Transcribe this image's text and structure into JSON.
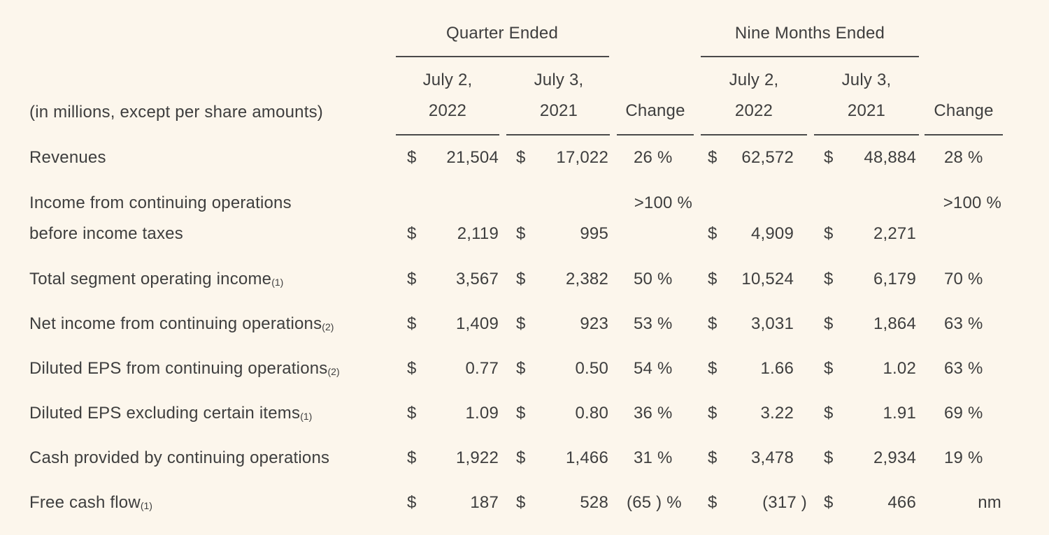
{
  "header": {
    "group_quarter": "Quarter Ended",
    "group_nine_months": "Nine Months Ended",
    "units_label": "(in millions, except per share amounts)",
    "q_col1_line1": "July 2,",
    "q_col1_line2": "2022",
    "q_col2_line1": "July 3,",
    "q_col2_line2": "2021",
    "q_change": "Change",
    "n_col1_line1": "July 2,",
    "n_col1_line2": "2022",
    "n_col2_line1": "July 3,",
    "n_col2_line2": "2021",
    "n_change": "Change"
  },
  "rows": [
    {
      "label": "Revenues",
      "footnote": "",
      "q_cur_dollar": "$",
      "q_cur": "21,504",
      "q_prior_dollar": "$",
      "q_prior": "17,022",
      "q_change": "26 %",
      "n_cur_dollar": "$",
      "n_cur": "62,572",
      "n_prior_dollar": "$",
      "n_prior": "48,884",
      "n_change": "28 %"
    },
    {
      "label": "Income from continuing operations",
      "label2": "before income taxes",
      "footnote": "",
      "q_cur_dollar": "$",
      "q_cur": "2,119",
      "q_prior_dollar": "$",
      "q_prior": "995",
      "q_change": ">100 %",
      "n_cur_dollar": "$",
      "n_cur": "4,909",
      "n_prior_dollar": "$",
      "n_prior": "2,271",
      "n_change": ">100 %"
    },
    {
      "label": "Total segment operating income",
      "footnote": "(1)",
      "q_cur_dollar": "$",
      "q_cur": "3,567",
      "q_prior_dollar": "$",
      "q_prior": "2,382",
      "q_change": "50 %",
      "n_cur_dollar": "$",
      "n_cur": "10,524",
      "n_prior_dollar": "$",
      "n_prior": "6,179",
      "n_change": "70 %"
    },
    {
      "label": "Net income from continuing operations",
      "footnote": "(2)",
      "q_cur_dollar": "$",
      "q_cur": "1,409",
      "q_prior_dollar": "$",
      "q_prior": "923",
      "q_change": "53 %",
      "n_cur_dollar": "$",
      "n_cur": "3,031",
      "n_prior_dollar": "$",
      "n_prior": "1,864",
      "n_change": "63 %"
    },
    {
      "label": "Diluted EPS from continuing operations",
      "footnote": "(2)",
      "q_cur_dollar": "$",
      "q_cur": "0.77",
      "q_prior_dollar": "$",
      "q_prior": "0.50",
      "q_change": "54 %",
      "n_cur_dollar": "$",
      "n_cur": "1.66",
      "n_prior_dollar": "$",
      "n_prior": "1.02",
      "n_change": "63 %"
    },
    {
      "label": "Diluted EPS excluding certain items",
      "footnote": "(1)",
      "q_cur_dollar": "$",
      "q_cur": "1.09",
      "q_prior_dollar": "$",
      "q_prior": "0.80",
      "q_change": "36 %",
      "n_cur_dollar": "$",
      "n_cur": "3.22",
      "n_prior_dollar": "$",
      "n_prior": "1.91",
      "n_change": "69 %"
    },
    {
      "label": "Cash provided by continuing operations",
      "footnote": "",
      "q_cur_dollar": "$",
      "q_cur": "1,922",
      "q_prior_dollar": "$",
      "q_prior": "1,466",
      "q_change": "31 %",
      "n_cur_dollar": "$",
      "n_cur": "3,478",
      "n_prior_dollar": "$",
      "n_prior": "2,934",
      "n_change": "19 %"
    },
    {
      "label": "Free cash flow",
      "footnote": "(1)",
      "q_cur_dollar": "$",
      "q_cur": "187",
      "q_prior_dollar": "$",
      "q_prior": "528",
      "q_change": "(65 ) %",
      "n_cur_dollar": "$",
      "n_cur": "(317 )",
      "n_prior_dollar": "$",
      "n_prior": "466",
      "n_change": "nm"
    }
  ]
}
